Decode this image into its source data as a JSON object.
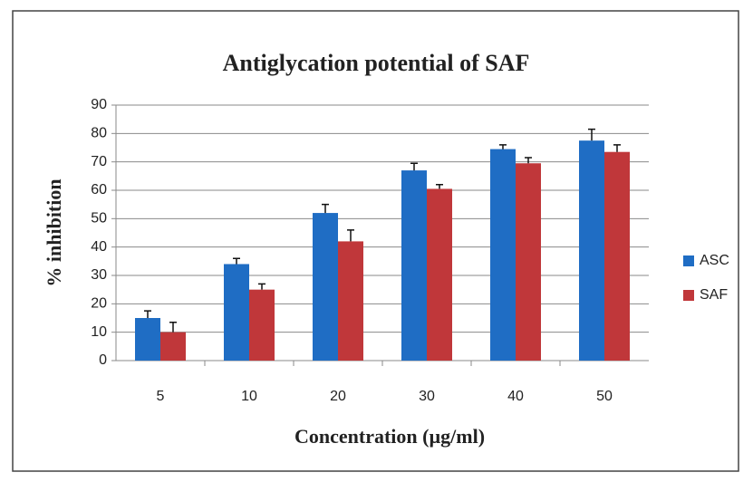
{
  "chart_data": {
    "type": "bar",
    "title": "Antiglycation potential of SAF",
    "x_label": "Concentration (µg/ml)",
    "y_label": "% inhibition",
    "categories": [
      "5",
      "10",
      "20",
      "30",
      "40",
      "50"
    ],
    "series": [
      {
        "name": "ASC",
        "color": "#1f6dc4",
        "values": [
          15,
          34,
          52,
          67,
          74.5,
          77.5
        ],
        "errors": [
          2.5,
          2,
          3,
          2.5,
          1.5,
          4
        ]
      },
      {
        "name": "SAF",
        "color": "#c0373a",
        "values": [
          10,
          25,
          42,
          60.5,
          69.5,
          73.5
        ],
        "errors": [
          3.5,
          2,
          4,
          1.5,
          2,
          2.5
        ]
      }
    ],
    "ylim": [
      0,
      90
    ],
    "yticks": [
      0,
      10,
      20,
      30,
      40,
      50,
      60,
      70,
      80,
      90
    ],
    "grid": true,
    "legend": "right"
  }
}
